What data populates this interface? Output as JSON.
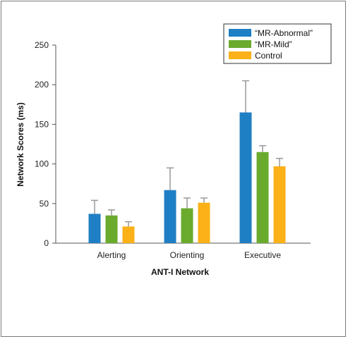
{
  "chart_data": {
    "type": "bar",
    "categories": [
      "Alerting",
      "Orienting",
      "Executive"
    ],
    "series": [
      {
        "name": "“MR-Abnormal”",
        "color": "#1f7fc4",
        "values": [
          37,
          67,
          165
        ],
        "errors": [
          17,
          28,
          40
        ]
      },
      {
        "name": "“MR-Mild”",
        "color": "#6aab2e",
        "values": [
          35,
          44,
          115
        ],
        "errors": [
          7,
          13,
          8
        ]
      },
      {
        "name": "Control",
        "color": "#fbb117",
        "values": [
          21,
          51,
          97
        ],
        "errors": [
          6,
          6,
          10
        ]
      }
    ],
    "xlabel": "ANT-I Network",
    "ylabel": "Network Scores (ms)",
    "ylim": [
      0,
      250
    ],
    "yticks": [
      0,
      50,
      100,
      150,
      200,
      250
    ],
    "grid": false,
    "legend": "top-right",
    "error_bar_color": "#999999"
  }
}
